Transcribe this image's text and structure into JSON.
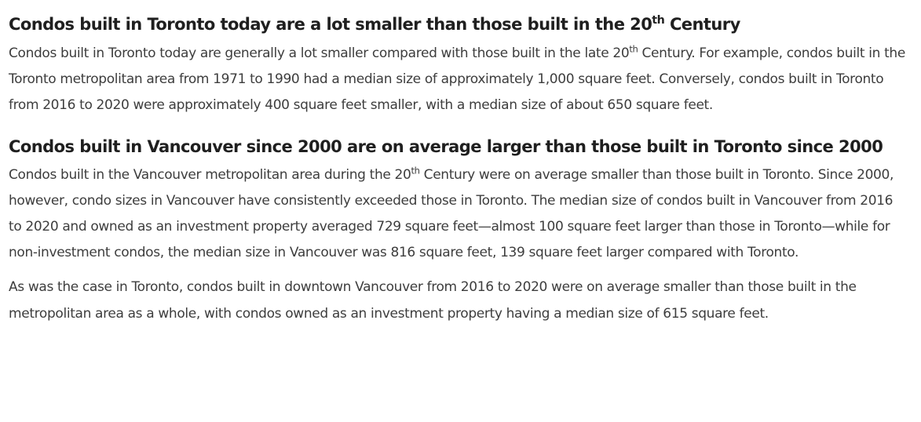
{
  "section1": {
    "heading": {
      "before": "Condos built in Toronto today are a lot smaller than those built in the 20",
      "sup": "th",
      "after": " Century"
    },
    "paragraph": {
      "before": "Condos built in Toronto today are generally a lot smaller compared with those built in the late 20",
      "sup": "th",
      "after": " Century. For example, condos built in the Toronto metropolitan area from 1971 to 1990 had a median size of approximately 1,000 square feet. Conversely, condos built in Toronto from 2016 to 2020 were approximately 400 square feet smaller, with a median size of about 650 square feet."
    }
  },
  "section2": {
    "heading": "Condos built in Vancouver since 2000 are on average larger than those built in Toronto since 2000",
    "paragraph1": {
      "before": "Condos built in the Vancouver metropolitan area during the 20",
      "sup": "th",
      "after": " Century were on average smaller than those built in Toronto. Since 2000, however, condo sizes in Vancouver have consistently exceeded those in Toronto. The median size of condos built in Vancouver from 2016 to 2020 and owned as an investment property averaged 729 square feet—almost 100 square feet larger than those in Toronto—while for non-investment condos, the median size in Vancouver was 816 square feet, 139 square feet larger compared with Toronto."
    },
    "paragraph2": "As was the case in Toronto, condos built in downtown Vancouver from 2016 to 2020 were on average smaller than those built in the metropolitan area as a whole, with condos owned as an investment property having a median size of 615 square feet."
  }
}
